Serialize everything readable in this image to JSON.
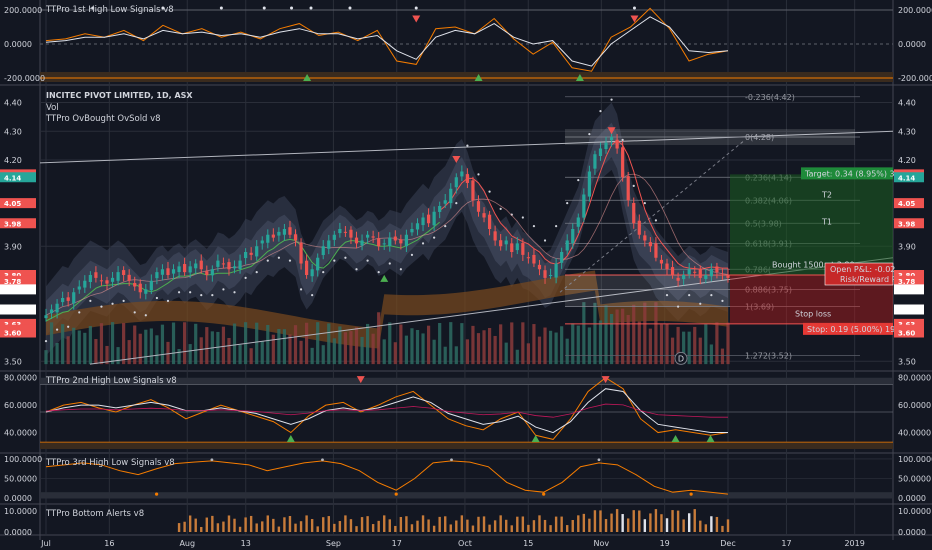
{
  "colors": {
    "bg": "#131722",
    "up": "#26a69a",
    "down": "#ef5350",
    "orange": "#f57c00",
    "grid": "#2a2e39",
    "axis": "#787b86"
  },
  "chart_data": [
    {
      "type": "line",
      "name": "top-oscillator",
      "title": "TTPro 1st High Low Signals v8",
      "yticks": [
        "200.0000",
        "0.0000",
        "-200.0000"
      ],
      "ylim": [
        -200,
        200
      ],
      "x": [
        0,
        5,
        10,
        15,
        20,
        25,
        30,
        35,
        40,
        45,
        50,
        55,
        60,
        65,
        70,
        75,
        80,
        85,
        90,
        95,
        100,
        105,
        110,
        115,
        120,
        125,
        130,
        135,
        140,
        145,
        150,
        155,
        160,
        165,
        170,
        175
      ],
      "series": [
        {
          "values": [
            20,
            30,
            60,
            40,
            80,
            20,
            110,
            60,
            90,
            40,
            70,
            30,
            90,
            120,
            50,
            70,
            20,
            80,
            -100,
            -120,
            90,
            100,
            60,
            150,
            30,
            -60,
            10,
            -140,
            -160,
            40,
            100,
            210,
            90,
            -100,
            -60,
            -40
          ]
        },
        {
          "values": [
            10,
            20,
            40,
            40,
            60,
            30,
            80,
            60,
            70,
            50,
            60,
            40,
            70,
            90,
            60,
            60,
            30,
            50,
            -40,
            -90,
            40,
            80,
            60,
            120,
            40,
            0,
            20,
            -100,
            -130,
            0,
            80,
            160,
            100,
            -40,
            -50,
            -40
          ]
        }
      ],
      "arrows_up": [
        67,
        111,
        137
      ],
      "arrows_down": [
        95,
        151
      ]
    },
    {
      "type": "candlestick",
      "name": "main-price",
      "title": "INCITEC PIVOT LIMITED, 1D, ASX",
      "subtitles": [
        "Vol",
        "TTPro OvBought OvSold v8"
      ],
      "ylim": [
        3.48,
        4.44
      ],
      "yticks": [
        "4.40",
        "4.30",
        "4.20",
        "3.90",
        "3.50"
      ],
      "x_labels": [
        "Jul",
        "16",
        "Aug",
        "13",
        "Sep",
        "17",
        "Oct",
        "15",
        "Nov",
        "19",
        "Dec",
        "17",
        "2019"
      ],
      "x_label_pos": [
        0,
        13,
        29,
        41,
        59,
        72,
        86,
        99,
        114,
        127,
        140,
        152,
        166
      ],
      "closes": [
        3.66,
        3.68,
        3.7,
        3.72,
        3.71,
        3.74,
        3.76,
        3.78,
        3.8,
        3.79,
        3.78,
        3.77,
        3.79,
        3.81,
        3.8,
        3.78,
        3.76,
        3.74,
        3.75,
        3.78,
        3.81,
        3.82,
        3.8,
        3.82,
        3.83,
        3.81,
        3.83,
        3.84,
        3.82,
        3.8,
        3.82,
        3.85,
        3.84,
        3.82,
        3.83,
        3.85,
        3.88,
        3.87,
        3.9,
        3.92,
        3.94,
        3.93,
        3.95,
        3.96,
        3.94,
        3.92,
        3.84,
        3.8,
        3.82,
        3.86,
        3.9,
        3.92,
        3.94,
        3.96,
        3.95,
        3.93,
        3.91,
        3.92,
        3.94,
        3.93,
        3.9,
        3.91,
        3.93,
        3.92,
        3.91,
        3.94,
        3.96,
        3.98,
        4.0,
        3.98,
        4.02,
        4.04,
        4.06,
        4.1,
        4.14,
        4.16,
        4.12,
        4.06,
        4.02,
        4.0,
        3.96,
        3.92,
        3.9,
        3.92,
        3.88,
        3.91,
        3.87,
        3.86,
        3.84,
        3.82,
        3.79,
        3.8,
        3.84,
        3.88,
        3.92,
        3.96,
        4.0,
        4.08,
        4.16,
        4.22,
        4.24,
        4.26,
        4.28,
        4.24,
        4.14,
        4.06,
        3.98,
        3.94,
        3.92,
        3.9,
        3.86,
        3.84,
        3.82,
        3.8,
        3.78,
        3.8,
        3.82,
        3.81,
        3.79,
        3.8,
        3.82,
        3.81,
        3.8,
        3.79
      ],
      "hlines": {
        "bought": 3.8,
        "target": 4.15,
        "stop": 3.63,
        "fib": [
          {
            "label": "-0.236(4.42)",
            "value": 4.42
          },
          {
            "label": "0(4.28)",
            "value": 4.28
          },
          {
            "label": "0.236(4.14)",
            "value": 4.14
          },
          {
            "label": "0.382(4.06)",
            "value": 4.06
          },
          {
            "label": "0.5(3.98)",
            "value": 3.98
          },
          {
            "label": "0.618(3.91)",
            "value": 3.91
          },
          {
            "label": "0.786(",
            "value": 3.82
          },
          {
            "label": "0.886(3.75)",
            "value": 3.75
          },
          {
            "label": "1(3.69)",
            "value": 3.69
          },
          {
            "label": "1.272(3.52)",
            "value": 3.52
          }
        ]
      },
      "annotations": {
        "t2": "T2",
        "t1": "T1",
        "bought": "Bought 1500 at 3.80",
        "stoploss": "Stop loss",
        "target": "Target: 0.34 (8.95%) 3",
        "stop": "Stop: 0.19 (5.00%) 19",
        "open_pnl": "Open P&L: -0.02",
        "risk_reward": "Risk/Reward R"
      },
      "price_tags_right": [
        {
          "text": "4.15",
          "value": 4.15,
          "color": "#ef5350"
        },
        {
          "text": "4.14",
          "value": 4.14,
          "color": "#26a69a"
        },
        {
          "text": "4.05",
          "value": 4.05,
          "color": "#ef5350"
        },
        {
          "text": "3.98",
          "value": 3.98,
          "color": "#ef5350"
        },
        {
          "text": "3.80",
          "value": 3.8,
          "color": "#ef5350"
        },
        {
          "text": "3.78",
          "value": 3.78,
          "color": "#ef5350"
        },
        {
          "text": "3.75",
          "value": 3.75,
          "color": "#ffffff"
        },
        {
          "text": "3.68",
          "value": 3.68,
          "color": "#ffffff"
        },
        {
          "text": "3.63",
          "value": 3.63,
          "color": "#ef5350"
        },
        {
          "text": "3.61",
          "value": 3.61,
          "color": "#ef5350"
        },
        {
          "text": "3.60",
          "value": 3.6,
          "color": "#ef5350"
        }
      ],
      "price_tags_left": [
        {
          "text": "4.15",
          "value": 4.15,
          "color": "#ef5350"
        },
        {
          "text": "4.14",
          "value": 4.14,
          "color": "#26a69a"
        },
        {
          "text": "4.05",
          "value": 4.05,
          "color": "#ef5350"
        },
        {
          "text": "3.98",
          "value": 3.98,
          "color": "#ef5350"
        },
        {
          "text": "3.80",
          "value": 3.8,
          "color": "#ef5350"
        },
        {
          "text": "3.78",
          "value": 3.78,
          "color": "#ef5350"
        },
        {
          "text": "3.75",
          "value": 3.75,
          "color": "#ffffff"
        },
        {
          "text": "3.68",
          "value": 3.68,
          "color": "#ffffff"
        },
        {
          "text": "3.63",
          "value": 3.63,
          "color": "#ef5350"
        },
        {
          "text": "3.61",
          "value": 3.61,
          "color": "#ef5350"
        },
        {
          "text": "3.60",
          "value": 3.6,
          "color": "#ef5350"
        }
      ],
      "badge": "D"
    },
    {
      "type": "line",
      "name": "second-oscillator",
      "title": "TTPro 2nd High Low Signals v8",
      "yticks": [
        "80.0000",
        "60.0000",
        "40.0000"
      ],
      "ylim": [
        28,
        82
      ],
      "series": [
        {
          "values": [
            55,
            60,
            62,
            58,
            55,
            60,
            64,
            58,
            50,
            55,
            60,
            56,
            52,
            48,
            40,
            52,
            60,
            62,
            55,
            60,
            66,
            70,
            60,
            50,
            45,
            42,
            50,
            55,
            38,
            35,
            50,
            70,
            80,
            72,
            50,
            40,
            42,
            40,
            38,
            40
          ]
        },
        {
          "values": [
            55,
            58,
            60,
            60,
            58,
            60,
            62,
            60,
            56,
            56,
            58,
            56,
            54,
            50,
            46,
            50,
            56,
            58,
            56,
            58,
            62,
            66,
            62,
            54,
            50,
            46,
            48,
            52,
            44,
            40,
            48,
            62,
            72,
            70,
            56,
            46,
            44,
            42,
            40,
            40
          ]
        }
      ],
      "arrows_up": [
        14,
        28,
        36,
        38
      ],
      "arrows_down": [
        18,
        32
      ]
    },
    {
      "type": "line",
      "name": "third-oscillator",
      "title": "TTPro 3rd High Low Signals v8",
      "yticks": [
        "100.0000",
        "50.0000",
        "0.0000"
      ],
      "ylim": [
        -5,
        105
      ],
      "series": [
        {
          "values": [
            80,
            85,
            90,
            85,
            70,
            60,
            75,
            88,
            92,
            95,
            90,
            85,
            70,
            80,
            90,
            95,
            88,
            70,
            40,
            20,
            50,
            90,
            95,
            92,
            80,
            40,
            20,
            15,
            40,
            80,
            90,
            85,
            60,
            30,
            15,
            20,
            15,
            10
          ]
        }
      ]
    },
    {
      "type": "bar",
      "name": "bottom-alerts",
      "title": "TTPro Bottom Alerts v8",
      "yticks": [
        "10.0000",
        "0.0000"
      ],
      "ylim": [
        0,
        12
      ]
    }
  ]
}
